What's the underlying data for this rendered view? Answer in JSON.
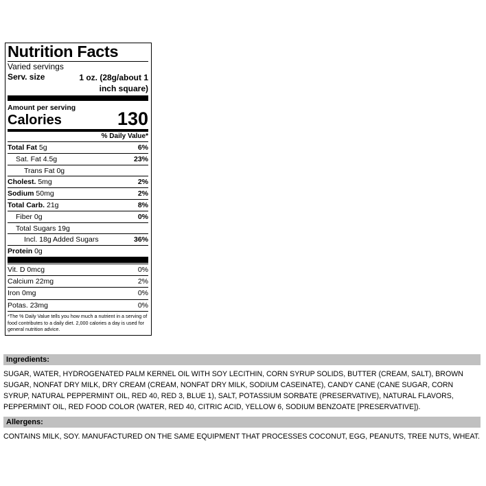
{
  "label": {
    "title": "Nutrition Facts",
    "servings": "Varied servings",
    "serving_size_label": "Serv. size",
    "serving_size": "1 oz. (28g/about 1 inch square)",
    "amount_per_serving": "Amount per serving",
    "calories_label": "Calories",
    "calories": "130",
    "daily_value_header": "% Daily Value*",
    "nutrients": [
      {
        "name": "Total Fat",
        "amount": "5g",
        "dv": "6%"
      },
      {
        "name": "Sat. Fat",
        "amount": "4.5g",
        "dv": "23%"
      },
      {
        "name": "Trans Fat",
        "amount": "0g"
      },
      {
        "name": "Cholest.",
        "amount": "5mg",
        "dv": "2%"
      },
      {
        "name": "Sodium",
        "amount": "50mg",
        "dv": "2%"
      },
      {
        "name": "Total Carb.",
        "amount": "21g",
        "dv": "8%"
      },
      {
        "name": "Fiber",
        "amount": "0g",
        "dv": "0%"
      },
      {
        "name": "Total Sugars",
        "amount": "19g"
      },
      {
        "name": "Incl. 18g Added Sugars",
        "dv": "36%"
      },
      {
        "name": "Protein",
        "amount": "0g"
      }
    ],
    "vitamins": [
      {
        "name": "Vit. D",
        "amount": "0mcg",
        "dv": "0%"
      },
      {
        "name": "Calcium",
        "amount": "22mg",
        "dv": "2%"
      },
      {
        "name": "Iron",
        "amount": "0mg",
        "dv": "0%"
      },
      {
        "name": "Potas.",
        "amount": "23mg",
        "dv": "0%"
      }
    ],
    "footnote": "*The % Daily Value tells you how much a nutrient in a serving of food contributes to a daily diet. 2,000 calories a day is used for general nutrition advice."
  },
  "ingredients": {
    "heading": "Ingredients:",
    "text": "SUGAR, WATER, HYDROGENATED PALM KERNEL OIL WITH SOY LECITHIN, CORN SYRUP SOLIDS, BUTTER (CREAM, SALT), BROWN SUGAR, NONFAT DRY MILK, DRY CREAM (CREAM, NONFAT DRY MILK, SODIUM CASEINATE), CANDY CANE (CANE SUGAR, CORN SYRUP, NATURAL PEPPERMINT OIL, RED 40, RED 3, BLUE 1), SALT, POTASSIUM SORBATE (PRESERVATIVE), NATURAL FLAVORS, PEPPERMINT OIL, RED FOOD COLOR (WATER, RED 40, CITRIC ACID, YELLOW 6, SODIUM BENZOATE [PRESERVATIVE])."
  },
  "allergens": {
    "heading": "Allergens:",
    "text": "CONTAINS MILK, SOY. MANUFACTURED ON THE SAME EQUIPMENT THAT PROCESSES COCONUT, EGG, PEANUTS, TREE NUTS, WHEAT."
  }
}
